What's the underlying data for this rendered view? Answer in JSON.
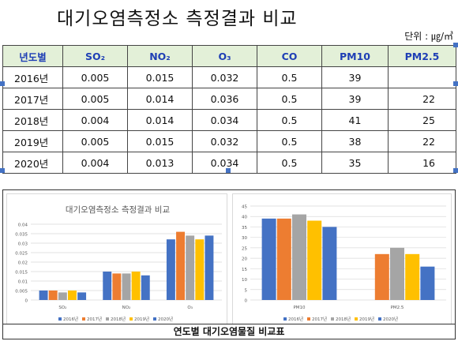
{
  "page": {
    "title": "대기오염측정소 측정결과 비교",
    "unit": "단위 : ㎍/㎥"
  },
  "table": {
    "headers": [
      "년도별",
      "SO₂",
      "NO₂",
      "O₃",
      "CO",
      "PM10",
      "PM2.5"
    ],
    "rows": [
      [
        "2016년",
        "0.005",
        "0.015",
        "0.032",
        "0.5",
        "39",
        ""
      ],
      [
        "2017년",
        "0.005",
        "0.014",
        "0.036",
        "0.5",
        "39",
        "22"
      ],
      [
        "2018년",
        "0.004",
        "0.014",
        "0.034",
        "0.5",
        "41",
        "25"
      ],
      [
        "2019년",
        "0.005",
        "0.015",
        "0.032",
        "0.5",
        "38",
        "22"
      ],
      [
        "2020년",
        "0.004",
        "0.013",
        "0.034",
        "0.5",
        "35",
        "16"
      ]
    ]
  },
  "caption": "연도별 대기오염물질 비교표",
  "chart_data": [
    {
      "type": "bar",
      "title": "대기오염측정소 측정결과 비교",
      "categories": [
        "SO₂",
        "NO₂",
        "O₃"
      ],
      "series": [
        {
          "name": "2016년",
          "values": [
            0.005,
            0.015,
            0.032
          ],
          "color": "#4472c4"
        },
        {
          "name": "2017년",
          "values": [
            0.005,
            0.014,
            0.036
          ],
          "color": "#ed7d31"
        },
        {
          "name": "2018년",
          "values": [
            0.004,
            0.014,
            0.034
          ],
          "color": "#a5a5a5"
        },
        {
          "name": "2019년",
          "values": [
            0.005,
            0.015,
            0.032
          ],
          "color": "#ffc000"
        },
        {
          "name": "2020년",
          "values": [
            0.004,
            0.013,
            0.034
          ],
          "color": "#4472c4"
        }
      ],
      "ylim": [
        0,
        0.04
      ],
      "yticks": [
        "0",
        "0.005",
        "0.01",
        "0.015",
        "0.02",
        "0.025",
        "0.03",
        "0.035",
        "0.04"
      ],
      "grid": true,
      "legend": "bottom"
    },
    {
      "type": "bar",
      "title": "",
      "categories": [
        "PM10",
        "PM2.5"
      ],
      "series": [
        {
          "name": "2016년",
          "values": [
            39,
            null
          ],
          "color": "#4472c4"
        },
        {
          "name": "2017년",
          "values": [
            39,
            22
          ],
          "color": "#ed7d31"
        },
        {
          "name": "2018년",
          "values": [
            41,
            25
          ],
          "color": "#a5a5a5"
        },
        {
          "name": "2019년",
          "values": [
            38,
            22
          ],
          "color": "#ffc000"
        },
        {
          "name": "2020년",
          "values": [
            35,
            16
          ],
          "color": "#4472c4"
        }
      ],
      "ylim": [
        0,
        45
      ],
      "yticks": [
        "0",
        "5",
        "10",
        "15",
        "20",
        "25",
        "30",
        "35",
        "40",
        "45"
      ],
      "grid": true,
      "legend": "bottom"
    }
  ]
}
